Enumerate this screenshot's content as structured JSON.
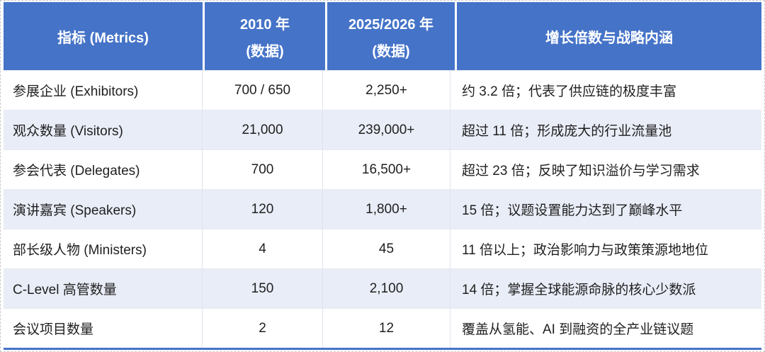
{
  "table": {
    "accent_color": "#4573C8",
    "band_color": "#E9EDF7",
    "headers": [
      {
        "label": "指标 (Metrics)",
        "sub": ""
      },
      {
        "label": "2010 年",
        "sub": "(数据)"
      },
      {
        "label": "2025/2026 年",
        "sub": "(数据)"
      },
      {
        "label": "增长倍数与战略内涵",
        "sub": ""
      }
    ],
    "rows": [
      {
        "metric": "参展企业 (Exhibitors)",
        "y2010": "700 / 650",
        "y2025": "2,250+",
        "note": "约 3.2 倍；代表了供应链的极度丰富"
      },
      {
        "metric": "观众数量 (Visitors)",
        "y2010": "21,000",
        "y2025": "239,000+",
        "note": "超过 11 倍；形成庞大的行业流量池"
      },
      {
        "metric": "参会代表 (Delegates)",
        "y2010": "700",
        "y2025": "16,500+",
        "note": "超过 23 倍；反映了知识溢价与学习需求"
      },
      {
        "metric": "演讲嘉宾 (Speakers)",
        "y2010": "120",
        "y2025": "1,800+",
        "note": "15 倍；议题设置能力达到了巅峰水平"
      },
      {
        "metric": "部长级人物 (Ministers)",
        "y2010": "4",
        "y2025": "45",
        "note": "11 倍以上；政治影响力与政策策源地地位"
      },
      {
        "metric": "C-Level 高管数量",
        "y2010": "150",
        "y2025": "2,100",
        "note": "14 倍；掌握全球能源命脉的核心少数派"
      },
      {
        "metric": "会议项目数量",
        "y2010": "2",
        "y2025": "12",
        "note": "覆盖从氢能、AI 到融资的全产业链议题"
      }
    ]
  }
}
